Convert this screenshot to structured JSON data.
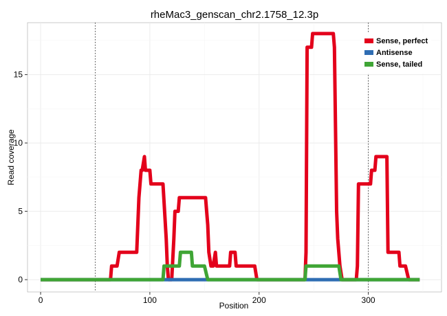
{
  "chart_data": {
    "type": "line",
    "title": "rheMac3_genscan_chr2.1758_12.3p",
    "xlabel": "Position",
    "ylabel": "Read coverage",
    "xlim": [
      -12,
      367
    ],
    "ylim": [
      -0.9,
      18.8
    ],
    "x_ticks": [
      0,
      100,
      200,
      300
    ],
    "x_tick_labels": [
      "0",
      "100",
      "200",
      "300"
    ],
    "y_ticks": [
      0,
      5,
      10,
      15
    ],
    "y_tick_labels": [
      "0",
      "5",
      "10",
      "15"
    ],
    "grid": true,
    "legend_position": "top-right",
    "vlines": [
      50,
      300
    ],
    "series": [
      {
        "name": "Sense, perfect",
        "color": "#e3001b",
        "points": [
          [
            0,
            0
          ],
          [
            64,
            0
          ],
          [
            65,
            1
          ],
          [
            70,
            1
          ],
          [
            72,
            2
          ],
          [
            88,
            2
          ],
          [
            89,
            4
          ],
          [
            90,
            6
          ],
          [
            91,
            7
          ],
          [
            92,
            8
          ],
          [
            93,
            8
          ],
          [
            95,
            9
          ],
          [
            96,
            8
          ],
          [
            100,
            8
          ],
          [
            101,
            7
          ],
          [
            112,
            7
          ],
          [
            115,
            3
          ],
          [
            116,
            1
          ],
          [
            117,
            0
          ],
          [
            120,
            0
          ],
          [
            122,
            3
          ],
          [
            123,
            5
          ],
          [
            126,
            5
          ],
          [
            127,
            6
          ],
          [
            138,
            6
          ],
          [
            143,
            6
          ],
          [
            144,
            6
          ],
          [
            151,
            6
          ],
          [
            153,
            4
          ],
          [
            154,
            2
          ],
          [
            156,
            1
          ],
          [
            158,
            1
          ],
          [
            160,
            2
          ],
          [
            161,
            1
          ],
          [
            164,
            1
          ],
          [
            173,
            1
          ],
          [
            174,
            2
          ],
          [
            178,
            2
          ],
          [
            179,
            1
          ],
          [
            196,
            1
          ],
          [
            198,
            0
          ],
          [
            242,
            0
          ],
          [
            243,
            2
          ],
          [
            244,
            17
          ],
          [
            248,
            17
          ],
          [
            249,
            18
          ],
          [
            268,
            18
          ],
          [
            269,
            17
          ],
          [
            271,
            5
          ],
          [
            272,
            3
          ],
          [
            274,
            1
          ],
          [
            276,
            0
          ],
          [
            289,
            0
          ],
          [
            290,
            1
          ],
          [
            291,
            7
          ],
          [
            302,
            7
          ],
          [
            303,
            8
          ],
          [
            306,
            8
          ],
          [
            307,
            9
          ],
          [
            317,
            9
          ],
          [
            318,
            2
          ],
          [
            328,
            2
          ],
          [
            329,
            1
          ],
          [
            334,
            1
          ],
          [
            337,
            0
          ],
          [
            347,
            0
          ]
        ]
      },
      {
        "name": "Antisense",
        "color": "#2f6db3",
        "points": [
          [
            0,
            0
          ],
          [
            347,
            0
          ]
        ]
      },
      {
        "name": "Sense, tailed",
        "color": "#3fa535",
        "points": [
          [
            0,
            0
          ],
          [
            112,
            0
          ],
          [
            113,
            1
          ],
          [
            127,
            1
          ],
          [
            128,
            2
          ],
          [
            138,
            2
          ],
          [
            139,
            1
          ],
          [
            150,
            1
          ],
          [
            153,
            0
          ],
          [
            242,
            0
          ],
          [
            243,
            1
          ],
          [
            273,
            1
          ],
          [
            275,
            0
          ],
          [
            347,
            0
          ]
        ]
      }
    ]
  }
}
